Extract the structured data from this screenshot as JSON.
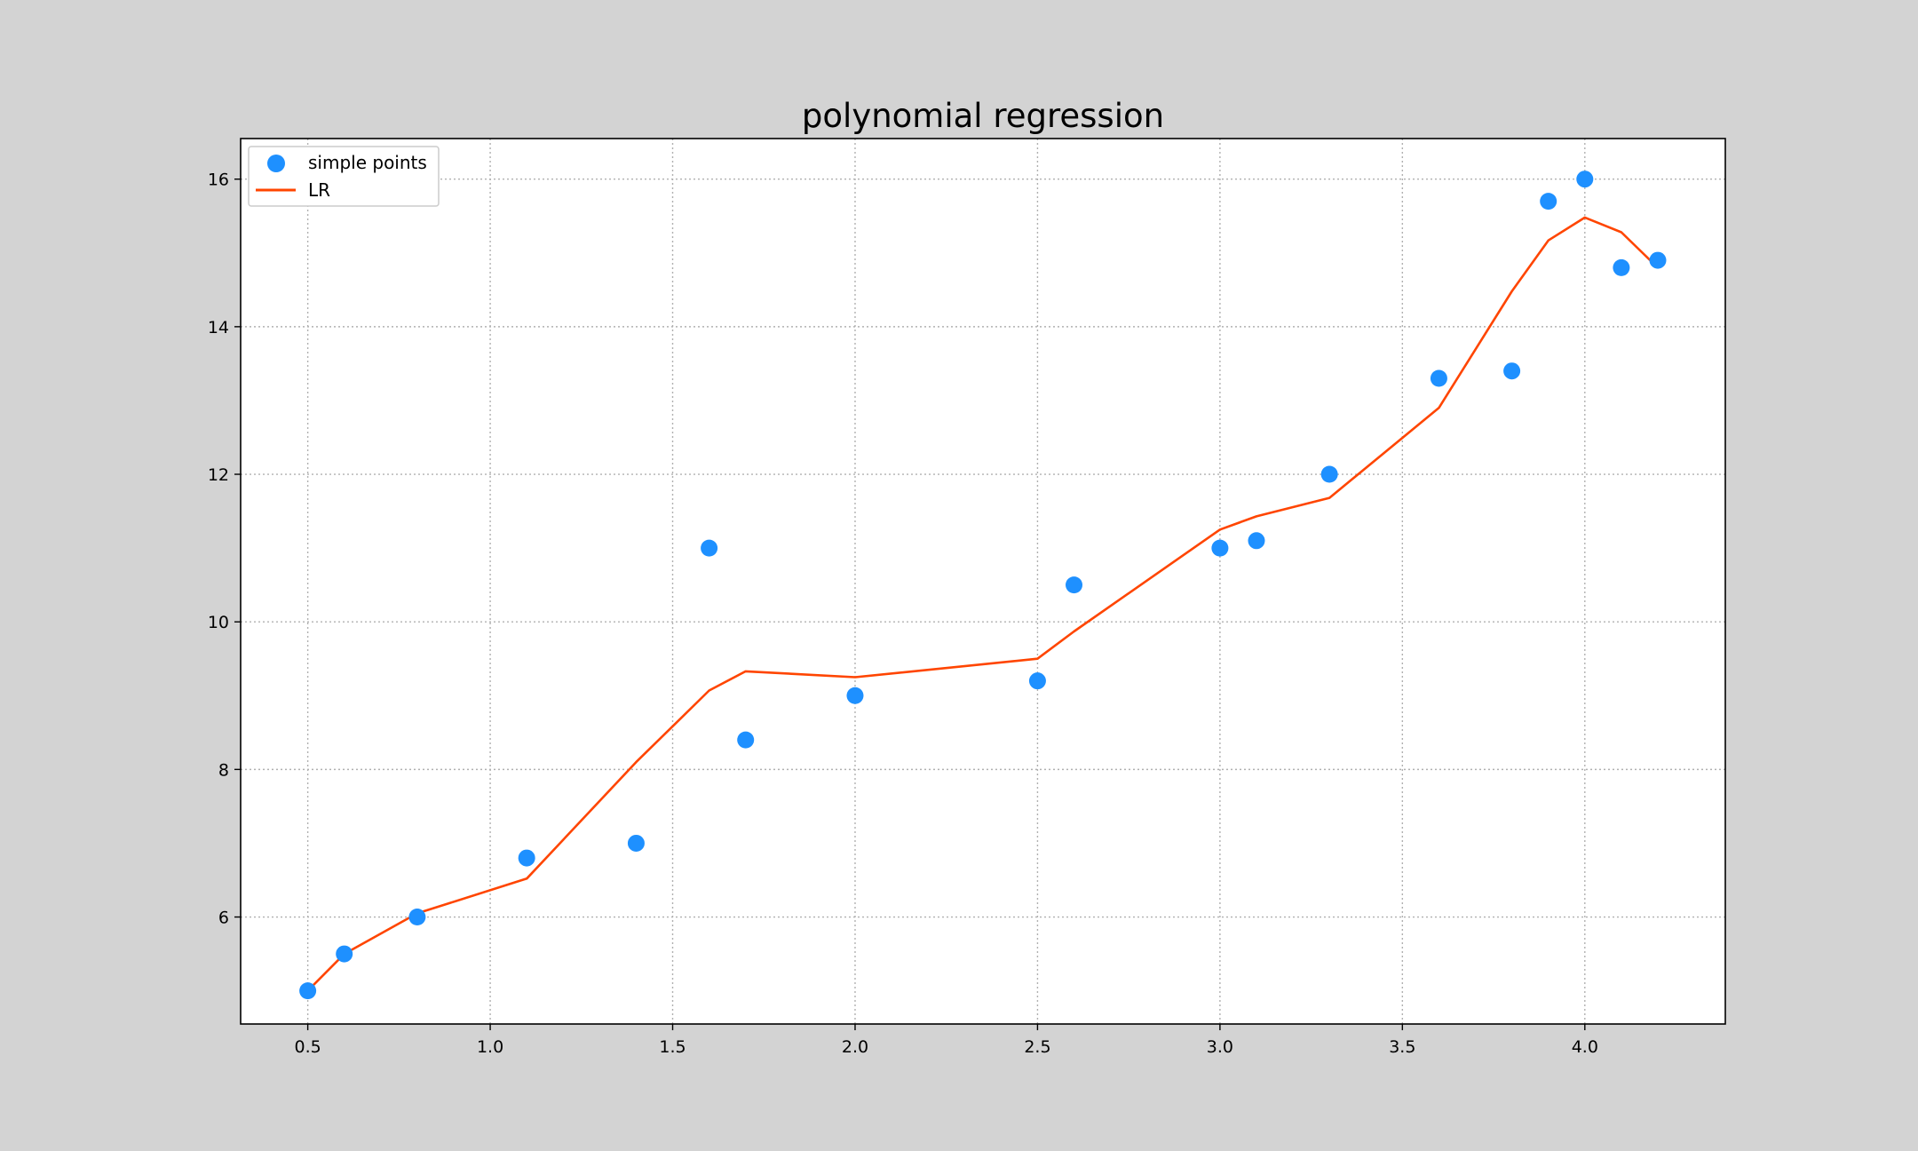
{
  "chart_data": {
    "type": "scatter",
    "title": "polynomial regression",
    "xlabel": "",
    "ylabel": "",
    "xlim": [
      0.316,
      4.385
    ],
    "ylim": [
      4.55,
      16.55
    ],
    "xticks": [
      0.5,
      1.0,
      1.5,
      2.0,
      2.5,
      3.0,
      3.5,
      4.0
    ],
    "xtick_labels": [
      "0.5",
      "1.0",
      "1.5",
      "2.0",
      "2.5",
      "3.0",
      "3.5",
      "4.0"
    ],
    "yticks": [
      6,
      8,
      10,
      12,
      14,
      16
    ],
    "ytick_labels": [
      "6",
      "8",
      "10",
      "12",
      "14",
      "16"
    ],
    "grid": true,
    "legend_position": "top-left",
    "series": [
      {
        "name": "simple points",
        "kind": "scatter",
        "color": "#1e90ff",
        "x": [
          0.5,
          0.6,
          0.8,
          1.1,
          1.4,
          1.6,
          1.7,
          2.0,
          2.5,
          2.6,
          3.0,
          3.1,
          3.3,
          3.6,
          3.8,
          3.9,
          4.0,
          4.1,
          4.2
        ],
        "y": [
          5.0,
          5.5,
          6.0,
          6.8,
          7.0,
          11.0,
          8.4,
          9.0,
          9.2,
          10.5,
          11.0,
          11.1,
          12.0,
          13.3,
          13.4,
          15.7,
          16.0,
          14.8,
          14.9
        ]
      },
      {
        "name": "LR",
        "kind": "line",
        "color": "#ff4500",
        "x": [
          0.5,
          0.6,
          0.8,
          1.1,
          1.4,
          1.6,
          1.7,
          2.0,
          2.5,
          2.6,
          3.0,
          3.1,
          3.3,
          3.6,
          3.8,
          3.9,
          4.0,
          4.1,
          4.2
        ],
        "y": [
          5.0,
          5.5,
          6.05,
          6.52,
          8.1,
          9.07,
          9.33,
          9.25,
          9.5,
          9.87,
          11.25,
          11.43,
          11.68,
          12.9,
          14.48,
          15.17,
          15.48,
          15.28,
          14.8
        ]
      }
    ]
  }
}
